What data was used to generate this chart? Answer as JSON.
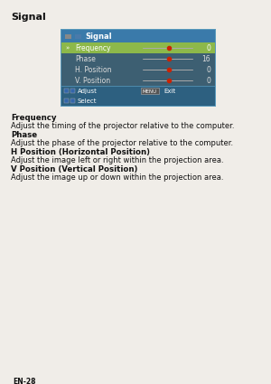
{
  "title": "Signal",
  "page_label": "EN-28",
  "menu_title": "Signal",
  "menu_bg": "#2d6080",
  "menu_header_bg": "#2d6080",
  "menu_row_bg": "#4a6e7e",
  "selected_row_bg": "#8db84a",
  "menu_border": "#5a9abc",
  "menu_items": [
    {
      "label": "Frequency",
      "value": "0",
      "selected": true
    },
    {
      "label": "Phase",
      "value": "16",
      "selected": false
    },
    {
      "label": "H. Position",
      "value": "0",
      "selected": false
    },
    {
      "label": "V. Position",
      "value": "0",
      "selected": false
    }
  ],
  "slider_color": "#cc2200",
  "slider_line_color": "#aaaaaa",
  "sections": [
    {
      "heading": "Frequency",
      "body": "Adjust the timing of the projector relative to the computer."
    },
    {
      "heading": "Phase",
      "body": "Adjust the phase of the projector relative to the computer."
    },
    {
      "heading": "H Position (Horizontal Position)",
      "body": "Adjust the image left or right within the projection area."
    },
    {
      "heading": "V Position (Vertical Position)",
      "body": "Adjust the image up or down within the projection area."
    }
  ],
  "bg_color": "#f0ede8",
  "text_color": "#111111",
  "page_fontsize": 5.5
}
